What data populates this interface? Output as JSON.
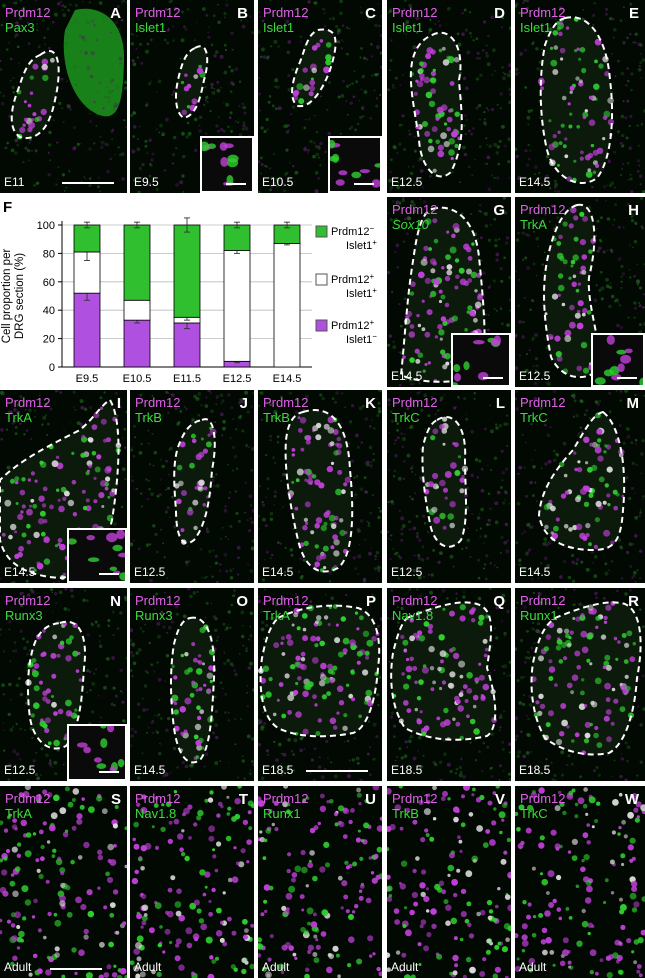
{
  "colors": {
    "magenta": "#b050e0",
    "green": "#2fbf2f",
    "label_magenta": "#e060e8",
    "label_green": "#3ddc3d"
  },
  "panels": {
    "A": {
      "letter": "A",
      "marker1": "Prdm12",
      "marker2": "Pax3",
      "stage": "E11"
    },
    "B": {
      "letter": "B",
      "marker1": "Prdm12",
      "marker2": "Islet1",
      "stage": "E9.5"
    },
    "C": {
      "letter": "C",
      "marker1": "Prdm12",
      "marker2": "Islet1",
      "stage": "E10.5"
    },
    "D": {
      "letter": "D",
      "marker1": "Prdm12",
      "marker2": "Islet1",
      "stage": "E12.5"
    },
    "E": {
      "letter": "E",
      "marker1": "Prdm12",
      "marker2": "Islet1",
      "stage": "E14.5"
    },
    "G": {
      "letter": "G",
      "marker1": "Prdm12",
      "marker2": "Sox10",
      "stage": "E14.5"
    },
    "H": {
      "letter": "H",
      "marker1": "Prdm12",
      "marker2": "TrkA",
      "stage": "E12.5"
    },
    "I": {
      "letter": "I",
      "marker1": "Prdm12",
      "marker2": "TrkA",
      "stage": "E14.5"
    },
    "J": {
      "letter": "J",
      "marker1": "Prdm12",
      "marker2": "TrkB",
      "stage": "E12.5"
    },
    "K": {
      "letter": "K",
      "marker1": "Prdm12",
      "marker2": "TrkB",
      "stage": "E14.5"
    },
    "L": {
      "letter": "L",
      "marker1": "Prdm12",
      "marker2": "TrkC",
      "stage": "E12.5"
    },
    "M": {
      "letter": "M",
      "marker1": "Prdm12",
      "marker2": "TrkC",
      "stage": "E14.5"
    },
    "N": {
      "letter": "N",
      "marker1": "Prdm12",
      "marker2": "Runx3",
      "stage": "E12.5"
    },
    "O": {
      "letter": "O",
      "marker1": "Prdm12",
      "marker2": "Runx3",
      "stage": "E14.5"
    },
    "P": {
      "letter": "P",
      "marker1": "Prdm12",
      "marker2": "TrkA",
      "stage": "E18.5"
    },
    "Q": {
      "letter": "Q",
      "marker1": "Prdm12",
      "marker2": "Nav1.8",
      "stage": "E18.5"
    },
    "R": {
      "letter": "R",
      "marker1": "Prdm12",
      "marker2": "Runx1",
      "stage": "E18.5"
    },
    "S": {
      "letter": "S",
      "marker1": "Prdm12",
      "marker2": "TrkA",
      "stage": "Adult"
    },
    "T": {
      "letter": "T",
      "marker1": "Prdm12",
      "marker2": "Nav1.8",
      "stage": "Adult"
    },
    "U": {
      "letter": "U",
      "marker1": "Prdm12",
      "marker2": "Runx1",
      "stage": "Adult"
    },
    "V": {
      "letter": "V",
      "marker1": "Prdm12",
      "marker2": "TrkB",
      "stage": "Adult"
    },
    "W": {
      "letter": "W",
      "marker1": "Prdm12",
      "marker2": "TrkC",
      "stage": "Adult"
    }
  },
  "chart_data": {
    "type": "bar",
    "letter": "F",
    "ylabel_line1": "Cell proportion per",
    "ylabel_line2": "DRG section (%)",
    "categories": [
      "E9.5",
      "E10.5",
      "E11.5",
      "E12.5",
      "E14.5"
    ],
    "yticks": [
      "0",
      "20",
      "40",
      "60",
      "80",
      "100"
    ],
    "ylim": [
      0,
      100
    ],
    "stacked": true,
    "series": [
      {
        "name": "Prdm12+ Islet1-",
        "color": "#b050e0",
        "values": [
          52,
          33,
          31,
          4,
          0
        ],
        "err": [
          5,
          2,
          4,
          1,
          0
        ]
      },
      {
        "name": "Prdm12+ Islet1+",
        "color": "#ffffff",
        "values": [
          29,
          14,
          4,
          78,
          87
        ],
        "err": [
          6,
          0,
          2,
          2,
          1
        ]
      },
      {
        "name": "Prdm12- Islet1+",
        "color": "#2fbf2f",
        "values": [
          19,
          53,
          65,
          18,
          13
        ],
        "err": [
          2,
          2,
          5,
          2,
          2
        ]
      }
    ],
    "legend": [
      {
        "line1": "Prdm12",
        "sup1": "−",
        "line2": "Islet1",
        "sup2": "+",
        "color": "#2fbf2f"
      },
      {
        "line1": "Prdm12",
        "sup1": "+",
        "line2": "Islet1",
        "sup2": "+",
        "color": "#ffffff"
      },
      {
        "line1": "Prdm12",
        "sup1": "+",
        "line2": "Islet1",
        "sup2": "−",
        "color": "#b050e0"
      }
    ]
  }
}
